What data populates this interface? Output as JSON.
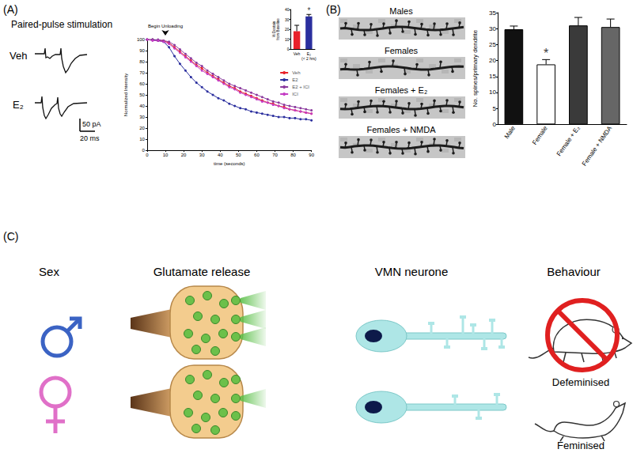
{
  "figure": {
    "panel_a": {
      "label": "(A)",
      "title": "Paired-pulse stimulation",
      "trace_labels": [
        "Veh",
        "E₂"
      ],
      "scale_bar": {
        "current": "50 pA",
        "time": "20 ms"
      }
    },
    "panel_b": {
      "label": "(B)",
      "image_labels": [
        "Males",
        "Females",
        "Females + E₂",
        "Females + NMDA"
      ]
    },
    "panel_c": {
      "label": "(C)",
      "headers": [
        "Sex",
        "Glutamate release",
        "VMN neurone",
        "Behaviour"
      ],
      "outcomes": [
        "Defeminised",
        "Feminised"
      ]
    }
  },
  "chart_data": [
    {
      "type": "line",
      "x_label": "time (seconds)",
      "y_label": "Normalized Intensity",
      "annotations": [
        {
          "x": 10,
          "text": "Begin Unloading"
        }
      ],
      "x": [
        0,
        3,
        6,
        9,
        12,
        15,
        18,
        21,
        24,
        27,
        30,
        33,
        36,
        39,
        42,
        45,
        48,
        51,
        54,
        57,
        60,
        63,
        66,
        69,
        72,
        75,
        78,
        81,
        84,
        87,
        90
      ],
      "series": [
        {
          "name": "Veh",
          "color": "#e8212a",
          "marker": "circle",
          "values": [
            100,
            100,
            99,
            99,
            97,
            93,
            89,
            85,
            81,
            77,
            74,
            70,
            67,
            64,
            61,
            58,
            56,
            53,
            51,
            49,
            47,
            45,
            43,
            42,
            40,
            39,
            37,
            36,
            35,
            34,
            33
          ]
        },
        {
          "name": "E2",
          "color": "#2b2f9e",
          "marker": "circle",
          "values": [
            100,
            100,
            99,
            98,
            93,
            85,
            78,
            72,
            66,
            61,
            57,
            53,
            50,
            47,
            45,
            42,
            40,
            38,
            37,
            35,
            34,
            33,
            32,
            31,
            30,
            30,
            29,
            29,
            28,
            28,
            27
          ]
        },
        {
          "name": "E2 + ICI",
          "color": "#8b3a9e",
          "marker": "circle",
          "values": [
            100,
            100,
            100,
            99,
            98,
            95,
            91,
            87,
            83,
            79,
            76,
            72,
            69,
            66,
            63,
            60,
            58,
            56,
            54,
            52,
            50,
            48,
            46,
            44,
            43,
            41,
            40,
            39,
            38,
            37,
            36
          ]
        },
        {
          "name": "ICI",
          "color": "#c43cc4",
          "marker": "circle",
          "values": [
            100,
            99,
            99,
            98,
            96,
            92,
            88,
            84,
            80,
            76,
            72,
            69,
            66,
            63,
            60,
            57,
            55,
            52,
            50,
            48,
            46,
            44,
            43,
            41,
            40,
            38,
            37,
            36,
            35,
            34,
            33
          ]
        }
      ],
      "xlim": [
        0,
        90
      ],
      "xticks": [
        0,
        10,
        20,
        30,
        40,
        50,
        60,
        70,
        80,
        90
      ],
      "ylim": [
        0,
        100
      ],
      "yticks": [
        0,
        10,
        20,
        30,
        40,
        50,
        60,
        70,
        80,
        90,
        100
      ],
      "legend": "upper-right",
      "grid": false
    },
    {
      "type": "bar",
      "y_label": "% Destain from Baseline",
      "categories": [
        "Veh",
        "E₂ (< 2 hrs)"
      ],
      "values": [
        18,
        33
      ],
      "errors": [
        6,
        2
      ],
      "colors": [
        "#e8212a",
        "#2b2f9e"
      ],
      "annotations": [
        {
          "category": "E₂ (< 2 hrs)",
          "text": "*"
        }
      ],
      "ylim": [
        0,
        40
      ],
      "yticks": [
        0,
        10,
        20,
        30,
        40
      ],
      "grid": false
    },
    {
      "type": "bar",
      "y_label": "No. spines/primary dendrite",
      "categories": [
        "Male",
        "Female",
        "Female + E₂",
        "Female + NMDA"
      ],
      "values": [
        29.8,
        18.8,
        31,
        30.5
      ],
      "errors": [
        1,
        1.5,
        2.5,
        2.5
      ],
      "colors": [
        "#111111",
        "#ffffff",
        "#3a3a3a",
        "#666666"
      ],
      "annotations": [
        {
          "category": "Female",
          "text": "*"
        }
      ],
      "ylim": [
        0,
        35
      ],
      "yticks": [
        0,
        5,
        10,
        15,
        20,
        25,
        30,
        35
      ],
      "grid": false
    }
  ]
}
